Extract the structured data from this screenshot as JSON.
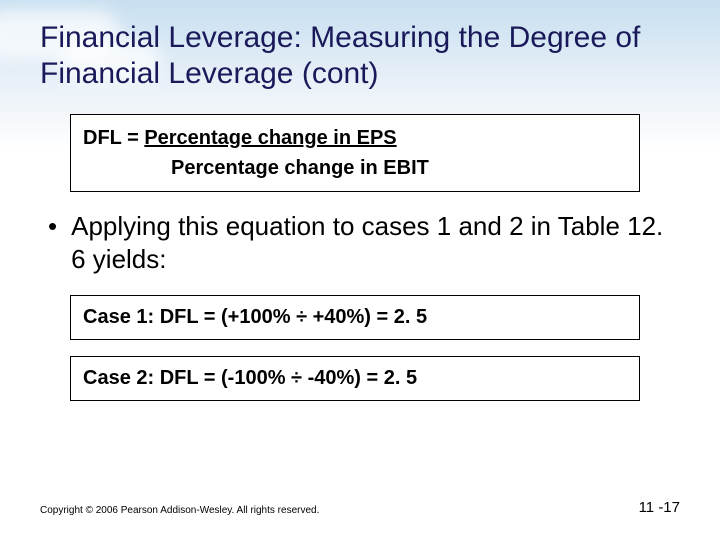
{
  "colors": {
    "title_color": "#1a1a5a",
    "box_border": "#000000",
    "box_background": "#ffffff",
    "text_color": "#000000",
    "bg_gradient_top": "#c8dff0",
    "bg_gradient_bottom": "#ffffff"
  },
  "typography": {
    "title_fontsize": 30,
    "body_fontsize": 26,
    "formula_fontsize": 20,
    "footer_fontsize": 10,
    "pagenum_fontsize": 15,
    "font_family": "Arial"
  },
  "title": "Financial Leverage: Measuring the Degree of Financial Leverage (cont)",
  "formula": {
    "lhs": "DFL  =  ",
    "numerator": "Percentage change in EPS",
    "denominator": "Percentage change in EBIT"
  },
  "bullet": "Applying this equation to cases 1 and 2 in Table 12. 6 yields:",
  "case1": "Case 1: DFL  =  (+100% ÷ +40%)  =  2. 5",
  "case2": "Case 2: DFL  =  (-100% ÷ -40%)  =  2. 5",
  "copyright": "Copyright © 2006 Pearson Addison-Wesley. All rights reserved.",
  "page": "11 -17"
}
